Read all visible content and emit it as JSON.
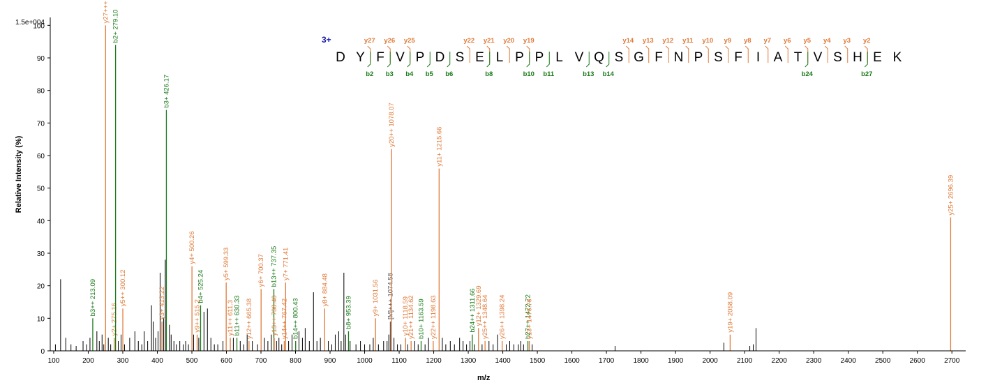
{
  "colors": {
    "y_ion": "#e07b3a",
    "b_ion": "#1a7a1a",
    "other": "#000000",
    "precursor": "#555555",
    "charge": "#1a1aa8"
  },
  "chart_data": {
    "type": "bar",
    "xlabel": "m/z",
    "ylabel": "Relative   Intensity (%)",
    "scale_label": "1.5e+004",
    "xlim": [
      90,
      2740
    ],
    "ylim": [
      0,
      102
    ],
    "xticks": [
      100,
      200,
      300,
      400,
      500,
      600,
      700,
      800,
      900,
      1000,
      1100,
      1200,
      1300,
      1400,
      1500,
      1600,
      1700,
      1800,
      1900,
      2000,
      2100,
      2200,
      2300,
      2400,
      2500,
      2600,
      2700
    ],
    "yticks": [
      0,
      10,
      20,
      30,
      40,
      50,
      60,
      70,
      80,
      90,
      100
    ],
    "sequence": {
      "charge": "3+",
      "residues": [
        "D",
        "Y",
        "F",
        "V",
        "P",
        "D",
        "S",
        "E",
        "L",
        "P",
        "P",
        "L",
        "V",
        "Q",
        "S",
        "G",
        "F",
        "N",
        "P",
        "S",
        "F",
        "I",
        "A",
        "T",
        "V",
        "S",
        "H",
        "E",
        "K"
      ],
      "y_marks": [
        {
          "label": "y27",
          "after": 2
        },
        {
          "label": "y26",
          "after": 3
        },
        {
          "label": "y25",
          "after": 4
        },
        {
          "label": "y22",
          "after": 7
        },
        {
          "label": "y21",
          "after": 8
        },
        {
          "label": "y20",
          "after": 9
        },
        {
          "label": "y19",
          "after": 10
        },
        {
          "label": "y14",
          "after": 15
        },
        {
          "label": "y13",
          "after": 16
        },
        {
          "label": "y12",
          "after": 17
        },
        {
          "label": "y11",
          "after": 18
        },
        {
          "label": "y10",
          "after": 19
        },
        {
          "label": "y9",
          "after": 20
        },
        {
          "label": "y8",
          "after": 21
        },
        {
          "label": "y7",
          "after": 22
        },
        {
          "label": "y6",
          "after": 23
        },
        {
          "label": "y5",
          "after": 24
        },
        {
          "label": "y4",
          "after": 25
        },
        {
          "label": "y3",
          "after": 26
        },
        {
          "label": "y2",
          "after": 27
        }
      ],
      "b_marks": [
        {
          "label": "b2",
          "after": 2
        },
        {
          "label": "b3",
          "after": 3
        },
        {
          "label": "b4",
          "after": 4
        },
        {
          "label": "b5",
          "after": 5
        },
        {
          "label": "b6",
          "after": 6
        },
        {
          "label": "b8",
          "after": 8
        },
        {
          "label": "b10",
          "after": 10
        },
        {
          "label": "b11",
          "after": 11
        },
        {
          "label": "b13",
          "after": 13
        },
        {
          "label": "b14",
          "after": 14
        },
        {
          "label": "b24",
          "after": 24
        },
        {
          "label": "b27",
          "after": 27
        }
      ]
    },
    "annotated_peaks": [
      {
        "mz": 213.09,
        "intensity": 10,
        "label": "b3++ 213.09",
        "ion": "b"
      },
      {
        "mz": 250.2,
        "intensity": 100,
        "label": "y27+++ 250.2",
        "ion": "y"
      },
      {
        "mz": 275.16,
        "intensity": 4,
        "label": "y2+ 275.16",
        "ion": "y"
      },
      {
        "mz": 279.1,
        "intensity": 94,
        "label": "b2+ 279.10",
        "ion": "b"
      },
      {
        "mz": 300.12,
        "intensity": 13,
        "label": "y5++ 300.12",
        "ion": "y"
      },
      {
        "mz": 413.22,
        "intensity": 9,
        "label": "y3+ 413.22",
        "ion": "y"
      },
      {
        "mz": 426.17,
        "intensity": 74,
        "label": "b3+ 426.17",
        "ion": "b"
      },
      {
        "mz": 500.26,
        "intensity": 26,
        "label": "y4+ 500.26",
        "ion": "y"
      },
      {
        "mz": 515.2,
        "intensity": 5,
        "label": "y9++ 515.2",
        "ion": "y"
      },
      {
        "mz": 525.24,
        "intensity": 14,
        "label": "b4+ 525.24",
        "ion": "b"
      },
      {
        "mz": 599.33,
        "intensity": 21,
        "label": "y5+ 599.33",
        "ion": "y"
      },
      {
        "mz": 611.3,
        "intensity": 4,
        "label": "y11++ 611.3",
        "ion": "y"
      },
      {
        "mz": 630.33,
        "intensity": 4,
        "label": "b11++ 630.33",
        "ion": "b"
      },
      {
        "mz": 665.38,
        "intensity": 3,
        "label": "y12++ 665.38",
        "ion": "y"
      },
      {
        "mz": 700.37,
        "intensity": 19,
        "label": "y6+ 700.37",
        "ion": "y"
      },
      {
        "mz": 737.35,
        "intensity": 19,
        "label": "b13++ 737.35",
        "ion": "b"
      },
      {
        "mz": 738.4,
        "intensity": 4,
        "label": "y13++ 738.40",
        "ion": "y"
      },
      {
        "mz": 767.42,
        "intensity": 3,
        "label": "y14++ 767.42",
        "ion": "y"
      },
      {
        "mz": 771.41,
        "intensity": 21,
        "label": "y7+ 771.41",
        "ion": "y"
      },
      {
        "mz": 800.43,
        "intensity": 3,
        "label": "b14++ 800.43",
        "ion": "b"
      },
      {
        "mz": 884.48,
        "intensity": 13,
        "label": "y8+ 884.48",
        "ion": "y"
      },
      {
        "mz": 953.39,
        "intensity": 6,
        "label": "b8+ 953.39",
        "ion": "b"
      },
      {
        "mz": 1031.56,
        "intensity": 10,
        "label": "y9+ 1031.56",
        "ion": "y"
      },
      {
        "mz": 1074.58,
        "intensity": 9,
        "label": "[M]+++ 1074.58",
        "ion": "p"
      },
      {
        "mz": 1078.07,
        "intensity": 62,
        "label": "y20++ 1078.07",
        "ion": "y"
      },
      {
        "mz": 1118.59,
        "intensity": 4,
        "label": "y10+ 1118.59",
        "ion": "y"
      },
      {
        "mz": 1134.62,
        "intensity": 3,
        "label": "y21++ 1134.62",
        "ion": "y"
      },
      {
        "mz": 1163.59,
        "intensity": 3,
        "label": "b10+ 1163.59",
        "ion": "b"
      },
      {
        "mz": 1198.63,
        "intensity": 3,
        "label": "y22++ 1198.63",
        "ion": "y"
      },
      {
        "mz": 1215.66,
        "intensity": 56,
        "label": "y11+ 1215.66",
        "ion": "y"
      },
      {
        "mz": 1311.66,
        "intensity": 5,
        "label": "b24++ 1311.66",
        "ion": "b"
      },
      {
        "mz": 1329.69,
        "intensity": 7,
        "label": "y12+ 1329.69",
        "ion": "y"
      },
      {
        "mz": 1348.64,
        "intensity": 3,
        "label": "y25++ 1348.64",
        "ion": "y"
      },
      {
        "mz": 1398.24,
        "intensity": 3,
        "label": "y26++ 1398.24",
        "ion": "y"
      },
      {
        "mz": 1472.72,
        "intensity": 3,
        "label": "b27++ 1472.72",
        "ion": "b"
      },
      {
        "mz": 1476.76,
        "intensity": 3,
        "label": "y13+ 1476.76",
        "ion": "y"
      },
      {
        "mz": 2058.09,
        "intensity": 5,
        "label": "y19+ 2058.09",
        "ion": "y"
      },
      {
        "mz": 2696.39,
        "intensity": 41,
        "label": "y25+ 2696.39",
        "ion": "y"
      }
    ],
    "unlabeled_peaks": [
      [
        105,
        2
      ],
      [
        120,
        22
      ],
      [
        135,
        4
      ],
      [
        150,
        2
      ],
      [
        165,
        1.5
      ],
      [
        185,
        3
      ],
      [
        195,
        2
      ],
      [
        205,
        4
      ],
      [
        225,
        6
      ],
      [
        232,
        3
      ],
      [
        240,
        5
      ],
      [
        245,
        2
      ],
      [
        258,
        4
      ],
      [
        265,
        2
      ],
      [
        287,
        3
      ],
      [
        295,
        5
      ],
      [
        305,
        2
      ],
      [
        320,
        4
      ],
      [
        335,
        6
      ],
      [
        345,
        3
      ],
      [
        355,
        2
      ],
      [
        362,
        6
      ],
      [
        372,
        3
      ],
      [
        383,
        14
      ],
      [
        388,
        9
      ],
      [
        395,
        4
      ],
      [
        402,
        6
      ],
      [
        408,
        24
      ],
      [
        418,
        10
      ],
      [
        423,
        28
      ],
      [
        435,
        8
      ],
      [
        440,
        5
      ],
      [
        448,
        3
      ],
      [
        455,
        2
      ],
      [
        465,
        3
      ],
      [
        475,
        2
      ],
      [
        482,
        3
      ],
      [
        490,
        2
      ],
      [
        505,
        5
      ],
      [
        520,
        4
      ],
      [
        535,
        12
      ],
      [
        545,
        13
      ],
      [
        555,
        4
      ],
      [
        565,
        2
      ],
      [
        575,
        2
      ],
      [
        590,
        3
      ],
      [
        620,
        4
      ],
      [
        640,
        3
      ],
      [
        650,
        2
      ],
      [
        660,
        5
      ],
      [
        675,
        3
      ],
      [
        690,
        2
      ],
      [
        710,
        4
      ],
      [
        720,
        3
      ],
      [
        730,
        5
      ],
      [
        745,
        3
      ],
      [
        752,
        4
      ],
      [
        760,
        2
      ],
      [
        780,
        3
      ],
      [
        790,
        5
      ],
      [
        810,
        6
      ],
      [
        820,
        4
      ],
      [
        828,
        7
      ],
      [
        840,
        3
      ],
      [
        852,
        18
      ],
      [
        862,
        3
      ],
      [
        872,
        4
      ],
      [
        895,
        3
      ],
      [
        905,
        2
      ],
      [
        915,
        5
      ],
      [
        925,
        6
      ],
      [
        932,
        3
      ],
      [
        940,
        24
      ],
      [
        945,
        5
      ],
      [
        958,
        3
      ],
      [
        975,
        2
      ],
      [
        988,
        3
      ],
      [
        1000,
        2
      ],
      [
        1015,
        2
      ],
      [
        1025,
        4
      ],
      [
        1040,
        2
      ],
      [
        1055,
        3
      ],
      [
        1065,
        3
      ],
      [
        1070,
        5
      ],
      [
        1085,
        4
      ],
      [
        1095,
        2
      ],
      [
        1105,
        2
      ],
      [
        1125,
        2
      ],
      [
        1145,
        3
      ],
      [
        1155,
        2
      ],
      [
        1175,
        2
      ],
      [
        1185,
        4
      ],
      [
        1225,
        4
      ],
      [
        1235,
        2
      ],
      [
        1248,
        3
      ],
      [
        1260,
        2
      ],
      [
        1275,
        4
      ],
      [
        1285,
        3
      ],
      [
        1295,
        2
      ],
      [
        1305,
        3
      ],
      [
        1318,
        2
      ],
      [
        1340,
        2
      ],
      [
        1360,
        3
      ],
      [
        1372,
        2
      ],
      [
        1385,
        5
      ],
      [
        1410,
        2
      ],
      [
        1420,
        3
      ],
      [
        1432,
        2
      ],
      [
        1445,
        2
      ],
      [
        1452,
        3
      ],
      [
        1460,
        2
      ],
      [
        1485,
        2
      ],
      [
        1725,
        1.5
      ],
      [
        2040,
        2.5
      ],
      [
        2115,
        1.5
      ],
      [
        2125,
        2
      ],
      [
        2133,
        7
      ]
    ]
  }
}
